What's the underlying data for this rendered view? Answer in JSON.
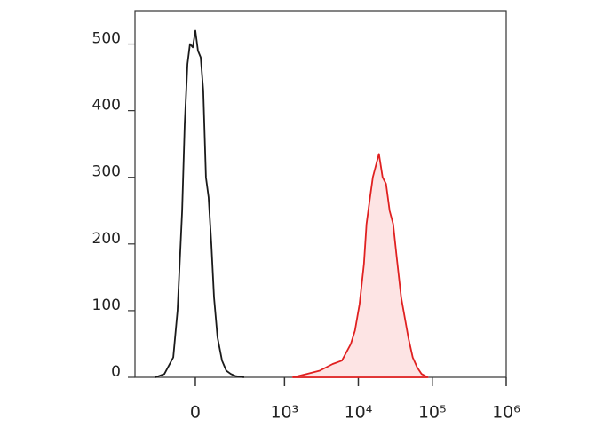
{
  "chart_data": {
    "type": "histogram-overlay",
    "xlim": [
      -400,
      1000000
    ],
    "xticks": [
      0,
      {
        "value": 1000,
        "label": "10³"
      },
      {
        "value": 10000,
        "label": "10⁴"
      },
      {
        "value": 100000,
        "label": "10⁵"
      },
      {
        "value": 1000000,
        "label": "10⁶"
      }
    ],
    "ylim": [
      0,
      550
    ],
    "yticks": [
      0,
      100,
      200,
      300,
      400,
      500
    ],
    "series": [
      {
        "color": "#1a1a1a",
        "fill": "none",
        "x": [
          -199,
          -140,
          -93,
          -73,
          -53,
          -42,
          -31,
          -21,
          -10,
          0,
          10,
          21,
          31,
          42,
          53,
          65,
          77,
          93,
          116,
          140,
          168,
          199,
          272
        ],
        "values": [
          0,
          5,
          30,
          100,
          250,
          380,
          470,
          500,
          495,
          520,
          490,
          480,
          430,
          300,
          270,
          200,
          120,
          60,
          25,
          10,
          5,
          2,
          0
        ]
      },
      {
        "color": "#e02020",
        "fill": "#fde4e4",
        "x": [
          1300,
          2000,
          3000,
          4500,
          6000,
          7900,
          9000,
          10400,
          11900,
          12900,
          14400,
          15700,
          17500,
          19000,
          21300,
          23700,
          26500,
          29600,
          33000,
          37900,
          42400,
          47300,
          54300,
          62400,
          71600,
          86900
        ],
        "values": [
          0,
          5,
          10,
          20,
          25,
          50,
          70,
          110,
          170,
          230,
          270,
          300,
          320,
          335,
          300,
          290,
          250,
          230,
          180,
          120,
          90,
          60,
          30,
          15,
          5,
          0
        ]
      }
    ]
  }
}
